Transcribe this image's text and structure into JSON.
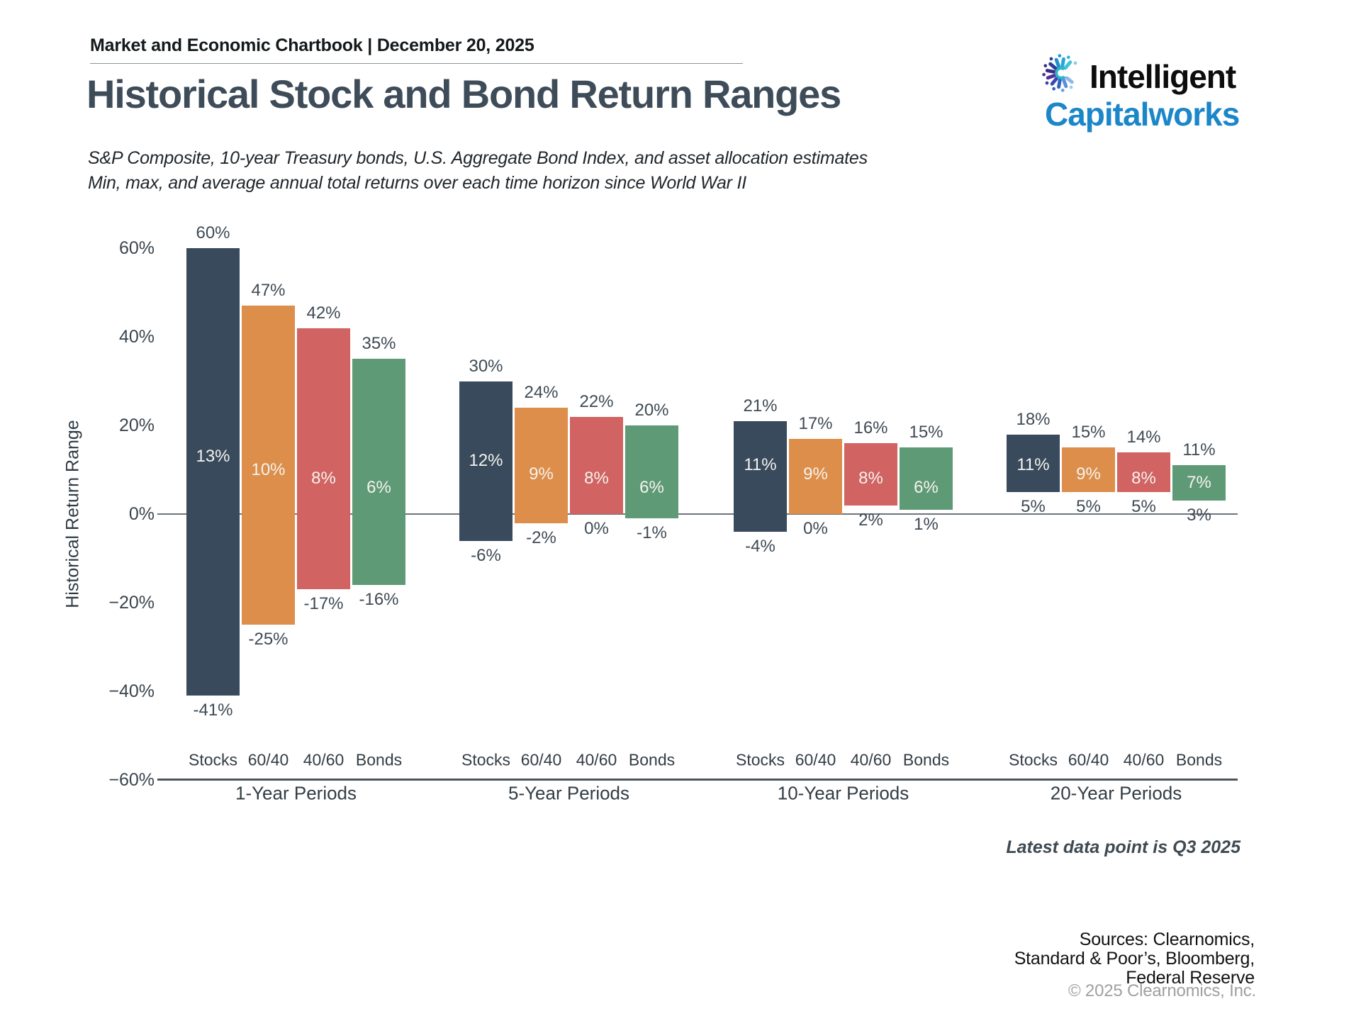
{
  "header": {
    "chartbook_title": "Market and Economic Chartbook | December 20, 2025"
  },
  "logo": {
    "line1": "Intelligent",
    "line2": "Capitalworks"
  },
  "page_title": "Historical Stock and Bond Return Ranges",
  "subtitle_line1": "S&P Composite, 10-year Treasury bonds, U.S. Aggregate Bond Index, and asset allocation estimates",
  "subtitle_line2": "Min, max, and average annual total returns over each time horizon since World War II",
  "chart_data": {
    "type": "bar",
    "subtype": "floating-range-bar",
    "title": "Historical Stock and Bond Return Ranges",
    "ylabel": "Historical Return Range",
    "ylim": [
      -60,
      60
    ],
    "grid": "zero-line-only",
    "ytick_values": [
      60,
      40,
      20,
      0,
      -20,
      -40,
      -60
    ],
    "ytick_labels": [
      "60%",
      "40%",
      "20%",
      "0%",
      "−20%",
      "−40%",
      "−60%"
    ],
    "categories": [
      "Stocks",
      "60/40",
      "40/60",
      "Bonds"
    ],
    "series_colors": {
      "Stocks": "#384a5b",
      "60/40": "#dd8e4a",
      "40/60": "#d16362",
      "Bonds": "#5f9a76"
    },
    "groups": [
      {
        "label": "1-Year Periods",
        "bars": [
          {
            "category": "Stocks",
            "max": 60,
            "avg": 13,
            "min": -41
          },
          {
            "category": "60/40",
            "max": 47,
            "avg": 10,
            "min": -25
          },
          {
            "category": "40/60",
            "max": 42,
            "avg": 8,
            "min": -17
          },
          {
            "category": "Bonds",
            "max": 35,
            "avg": 6,
            "min": -16
          }
        ]
      },
      {
        "label": "5-Year Periods",
        "bars": [
          {
            "category": "Stocks",
            "max": 30,
            "avg": 12,
            "min": -6
          },
          {
            "category": "60/40",
            "max": 24,
            "avg": 9,
            "min": -2
          },
          {
            "category": "40/60",
            "max": 22,
            "avg": 8,
            "min": 0
          },
          {
            "category": "Bonds",
            "max": 20,
            "avg": 6,
            "min": -1
          }
        ]
      },
      {
        "label": "10-Year Periods",
        "bars": [
          {
            "category": "Stocks",
            "max": 21,
            "avg": 11,
            "min": -4
          },
          {
            "category": "60/40",
            "max": 17,
            "avg": 9,
            "min": 0
          },
          {
            "category": "40/60",
            "max": 16,
            "avg": 8,
            "min": 2
          },
          {
            "category": "Bonds",
            "max": 15,
            "avg": 6,
            "min": 1
          }
        ]
      },
      {
        "label": "20-Year Periods",
        "bars": [
          {
            "category": "Stocks",
            "max": 18,
            "avg": 11,
            "min": 5
          },
          {
            "category": "60/40",
            "max": 15,
            "avg": 9,
            "min": 5
          },
          {
            "category": "40/60",
            "max": 14,
            "avg": 8,
            "min": 5
          },
          {
            "category": "Bonds",
            "max": 11,
            "avg": 7,
            "min": 3
          }
        ]
      }
    ]
  },
  "footnote": "Latest data point is Q3 2025",
  "footer": {
    "sources": [
      "Sources: Clearnomics,",
      "Standard & Poor’s, Bloomberg,",
      "Federal Reserve"
    ],
    "copyright": "© 2025 Clearnomics, Inc."
  }
}
